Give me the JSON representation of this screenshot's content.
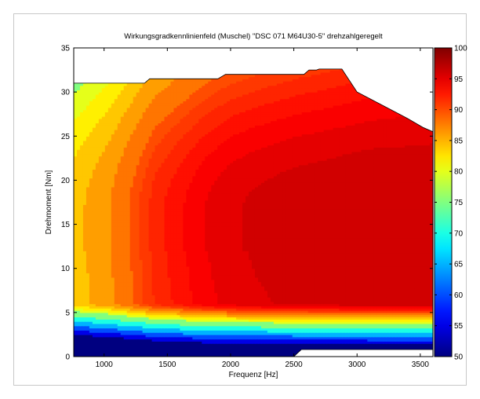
{
  "chart_data": {
    "type": "heatmap",
    "title": "Wirkungsgradkennlinienfeld (Muschel) \"DSC 071 M64U30-5\" drehzahlgeregelt",
    "xlabel": "Frequenz [Hz]",
    "ylabel": "Drehmoment [Nm]",
    "xlim": [
      760,
      3600
    ],
    "ylim": [
      0,
      35
    ],
    "xticks": [
      1000,
      1500,
      2000,
      2500,
      3000,
      3500
    ],
    "yticks": [
      0,
      5,
      10,
      15,
      20,
      25,
      30,
      35
    ],
    "colorbar": {
      "min": 50,
      "max": 100,
      "ticks": [
        50,
        55,
        60,
        65,
        70,
        75,
        80,
        85,
        90,
        95,
        100
      ],
      "colormap": "jet"
    },
    "contour_levels": [
      50,
      55,
      60,
      65,
      70,
      75,
      80,
      82,
      84,
      86,
      88,
      90,
      91,
      92,
      93,
      94,
      95,
      96
    ],
    "data_region_upper_boundary": {
      "x": [
        760,
        1320,
        1360,
        1900,
        1960,
        2580,
        2620,
        2680,
        2700,
        2880,
        3000,
        3400,
        3520,
        3600
      ],
      "y": [
        31,
        31,
        31.5,
        31.5,
        32,
        32,
        32.5,
        32.5,
        32.6,
        32.6,
        30,
        27,
        26,
        25.5
      ]
    },
    "data_region_lower_boundary": {
      "x": [
        760,
        2500,
        2560,
        3600
      ],
      "y": [
        0,
        0,
        0.8,
        0.8
      ]
    },
    "peak_region": {
      "description_value": "max efficiency >= 96",
      "x_range": [
        1900,
        3600
      ],
      "y_range": [
        6,
        27
      ]
    }
  }
}
